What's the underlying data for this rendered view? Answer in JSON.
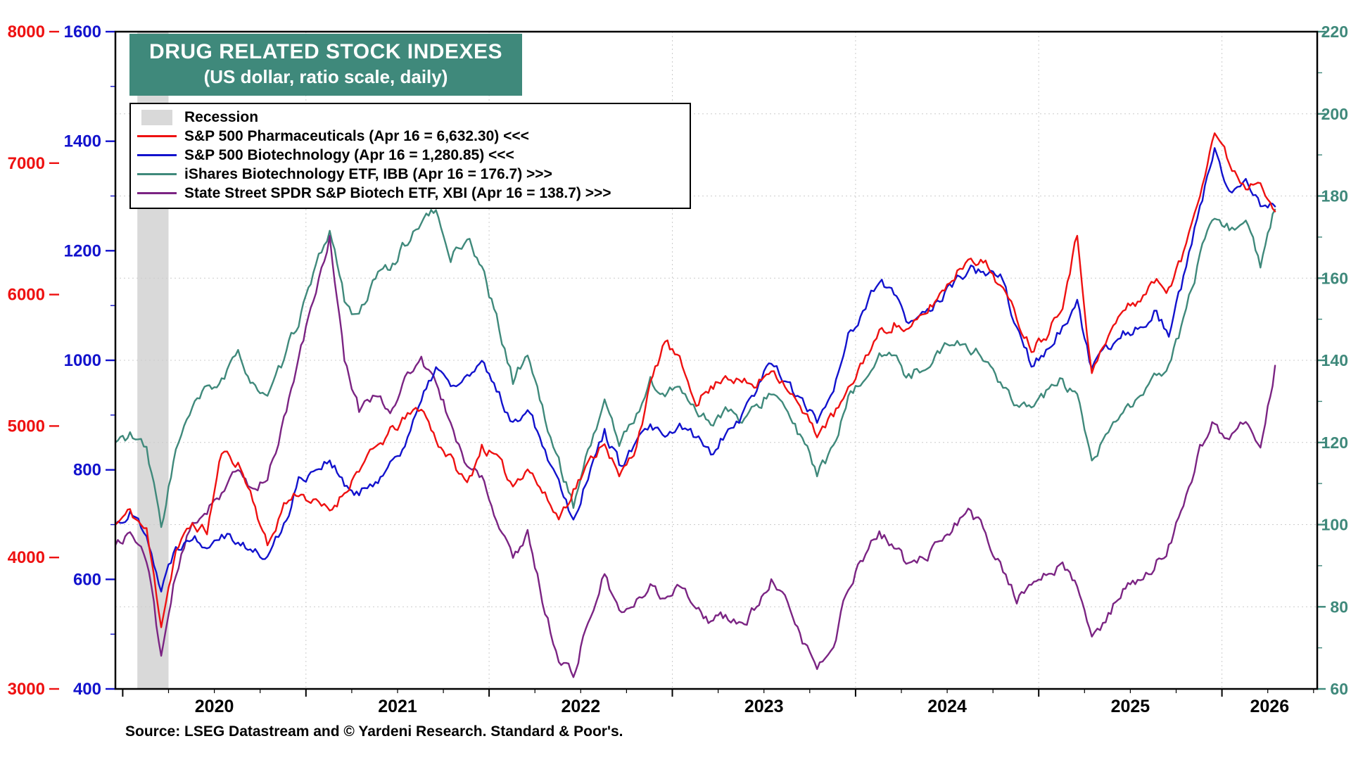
{
  "title": {
    "line1": "DRUG RELATED STOCK INDEXES",
    "line2": "(US dollar, ratio scale, daily)"
  },
  "source": "Source: LSEG Datastream and © Yardeni Research. Standard & Poor's.",
  "colors": {
    "pharma_red": "#ee1111",
    "biotech_blue": "#1212cd",
    "ibb_teal": "#3f897b",
    "xbi_purple": "#7b2483",
    "title_bg": "#3f897b",
    "title_text": "#ffffff",
    "recession": "#d9d9d9",
    "grid": "#cccccc",
    "axis_black": "#000000"
  },
  "legend": {
    "position": "top-left",
    "items": [
      {
        "id": "recession",
        "swatch": "band",
        "color": "#d9d9d9",
        "label": "Recession"
      },
      {
        "id": "pharma",
        "swatch": "line",
        "color": "#ee1111",
        "label": "S&P 500 Pharmaceuticals (Apr 16 = 6,632.30) <<<"
      },
      {
        "id": "biotech",
        "swatch": "line",
        "color": "#1212cd",
        "label": "S&P 500 Biotechnology (Apr 16 = 1,280.85) <<<"
      },
      {
        "id": "ibb",
        "swatch": "line",
        "color": "#3f897b",
        "label": "iShares Biotechnology ETF, IBB (Apr 16 = 176.7) >>>"
      },
      {
        "id": "xbi",
        "swatch": "line",
        "color": "#7b2483",
        "label": "State Street SPDR S&P Biotech ETF, XBI (Apr 16 = 138.7) >>>"
      }
    ]
  },
  "axes": {
    "y": {
      "left_outer": {
        "side": "left",
        "color": "#ee1111",
        "range": [
          3000,
          8000
        ],
        "ticks": [
          3000,
          4000,
          5000,
          6000,
          7000,
          8000
        ]
      },
      "left_inner": {
        "side": "left",
        "color": "#1212cd",
        "range": [
          400,
          1600
        ],
        "ticks": [
          400,
          600,
          800,
          1000,
          1200,
          1400,
          1600
        ],
        "minor_ticks": [
          500,
          700,
          900,
          1100,
          1300,
          1500
        ]
      },
      "right": {
        "side": "right",
        "color": "#3f897b",
        "range": [
          60,
          220
        ],
        "ticks": [
          60,
          80,
          100,
          120,
          140,
          160,
          180,
          200,
          220
        ],
        "minor_ticks": [
          70,
          90,
          110,
          130,
          150,
          170,
          190,
          210
        ]
      }
    },
    "x": {
      "range": [
        2019.96,
        2026.52
      ],
      "year_ticks": [
        2020,
        2021,
        2022,
        2023,
        2024,
        2025,
        2026
      ],
      "labels": [
        {
          "text": "2020",
          "t": 2020.5
        },
        {
          "text": "2021",
          "t": 2021.5
        },
        {
          "text": "2022",
          "t": 2022.5
        },
        {
          "text": "2023",
          "t": 2023.5
        },
        {
          "text": "2024",
          "t": 2024.5
        },
        {
          "text": "2025",
          "t": 2025.5
        },
        {
          "text": "2026",
          "t": 2026.26
        }
      ]
    },
    "grid": {
      "h_values_right_axis": [
        80,
        100,
        120,
        140,
        160,
        180,
        200
      ],
      "v_years": [
        2021,
        2022,
        2023,
        2024,
        2025,
        2026
      ]
    }
  },
  "chart_data": {
    "type": "line",
    "title": "DRUG RELATED STOCK INDEXES",
    "subtitle": "(US dollar, ratio scale, daily)",
    "x_unit": "decimal_year",
    "x_range": [
      2019.96,
      2026.52
    ],
    "recession_bands": [
      [
        2020.08,
        2020.25
      ]
    ],
    "draw_order": [
      2,
      3,
      1,
      0
    ],
    "x": [
      2019.96,
      2020.04,
      2020.13,
      2020.21,
      2020.29,
      2020.38,
      2020.46,
      2020.54,
      2020.63,
      2020.71,
      2020.79,
      2020.88,
      2020.96,
      2021.04,
      2021.13,
      2021.21,
      2021.29,
      2021.38,
      2021.46,
      2021.54,
      2021.63,
      2021.71,
      2021.79,
      2021.88,
      2021.96,
      2022.04,
      2022.13,
      2022.21,
      2022.29,
      2022.38,
      2022.46,
      2022.54,
      2022.63,
      2022.71,
      2022.79,
      2022.88,
      2022.96,
      2023.04,
      2023.13,
      2023.21,
      2023.29,
      2023.38,
      2023.46,
      2023.54,
      2023.63,
      2023.71,
      2023.79,
      2023.88,
      2023.96,
      2024.04,
      2024.13,
      2024.21,
      2024.29,
      2024.38,
      2024.46,
      2024.54,
      2024.63,
      2024.71,
      2024.79,
      2024.88,
      2024.96,
      2025.04,
      2025.13,
      2025.21,
      2025.29,
      2025.38,
      2025.46,
      2025.54,
      2025.63,
      2025.71,
      2025.79,
      2025.88,
      2025.96,
      2026.04,
      2026.13,
      2026.21,
      2026.29
    ],
    "series": [
      {
        "id": "pharma",
        "name": "S&P 500 Pharmaceuticals",
        "axis": "left_outer",
        "color": "#ee1111",
        "latest": "Apr 16 = 6,632.30",
        "values": [
          4250,
          4350,
          4200,
          3500,
          4050,
          4250,
          4200,
          4800,
          4720,
          4450,
          4080,
          4400,
          4500,
          4420,
          4350,
          4500,
          4680,
          4820,
          4950,
          5050,
          5150,
          4900,
          4750,
          4550,
          4850,
          4750,
          4550,
          4700,
          4500,
          4300,
          4520,
          4700,
          4900,
          4600,
          4800,
          5300,
          5650,
          5480,
          5200,
          5280,
          5400,
          5330,
          5300,
          5450,
          5300,
          5100,
          4950,
          5080,
          5250,
          5500,
          5700,
          5780,
          5720,
          5850,
          6000,
          6150,
          6300,
          6230,
          6080,
          5820,
          5600,
          5700,
          5950,
          6450,
          5400,
          5680,
          5880,
          5950,
          6100,
          6050,
          6300,
          6800,
          7250,
          7000,
          6820,
          6900,
          6632.3
        ]
      },
      {
        "id": "biotech",
        "name": "S&P 500 Biotechnology",
        "axis": "left_inner",
        "color": "#1212cd",
        "latest": "Apr 16 = 1,280.85",
        "values": [
          700,
          720,
          690,
          580,
          660,
          680,
          665,
          690,
          672,
          650,
          640,
          700,
          780,
          800,
          820,
          770,
          752,
          780,
          810,
          850,
          920,
          990,
          950,
          968,
          990,
          950,
          880,
          920,
          850,
          780,
          712,
          790,
          870,
          810,
          840,
          880,
          852,
          880,
          860,
          830,
          870,
          900,
          950,
          1000,
          960,
          920,
          890,
          950,
          1050,
          1080,
          1150,
          1120,
          1060,
          1090,
          1110,
          1140,
          1170,
          1150,
          1160,
          1060,
          990,
          1020,
          1060,
          1100,
          980,
          1020,
          1050,
          1060,
          1090,
          1050,
          1150,
          1280,
          1380,
          1300,
          1340,
          1290,
          1280.85
        ]
      },
      {
        "id": "ibb",
        "name": "iShares Biotechnology ETF, IBB",
        "axis": "right",
        "color": "#3f897b",
        "latest": "Apr 16 = 176.7",
        "values": [
          120,
          122,
          118,
          100,
          118,
          128,
          133,
          135,
          141,
          135,
          130,
          140,
          150,
          160,
          172,
          155,
          150,
          160,
          163,
          168,
          174,
          176,
          165,
          170,
          163,
          150,
          135,
          142,
          128,
          115,
          105,
          118,
          130,
          120,
          125,
          135,
          131,
          134,
          128,
          125,
          128,
          125,
          128,
          133,
          127,
          120,
          113,
          118,
          130,
          135,
          142,
          140,
          136,
          139,
          142,
          145,
          143,
          140,
          135,
          128,
          130,
          132,
          135,
          130,
          115,
          122,
          128,
          130,
          135,
          138,
          150,
          165,
          175,
          172,
          175,
          163,
          176.7
        ]
      },
      {
        "id": "xbi",
        "name": "State Street SPDR S&P Biotech ETF, XBI",
        "axis": "right",
        "color": "#7b2483",
        "latest": "Apr 16 = 138.7",
        "values": [
          95,
          98,
          92,
          68,
          88,
          100,
          104,
          108,
          113,
          108,
          112,
          125,
          140,
          155,
          170,
          140,
          128,
          132,
          128,
          135,
          140,
          134,
          125,
          114,
          112,
          100,
          92,
          98,
          82,
          67,
          64,
          76,
          88,
          78,
          80,
          85,
          82,
          86,
          80,
          76,
          78,
          75,
          80,
          86,
          80,
          72,
          65,
          70,
          85,
          92,
          98,
          95,
          90,
          92,
          95,
          100,
          103,
          98,
          90,
          82,
          85,
          88,
          90,
          85,
          72,
          78,
          84,
          86,
          90,
          95,
          105,
          118,
          125,
          120,
          125,
          119,
          138.7
        ]
      }
    ]
  }
}
